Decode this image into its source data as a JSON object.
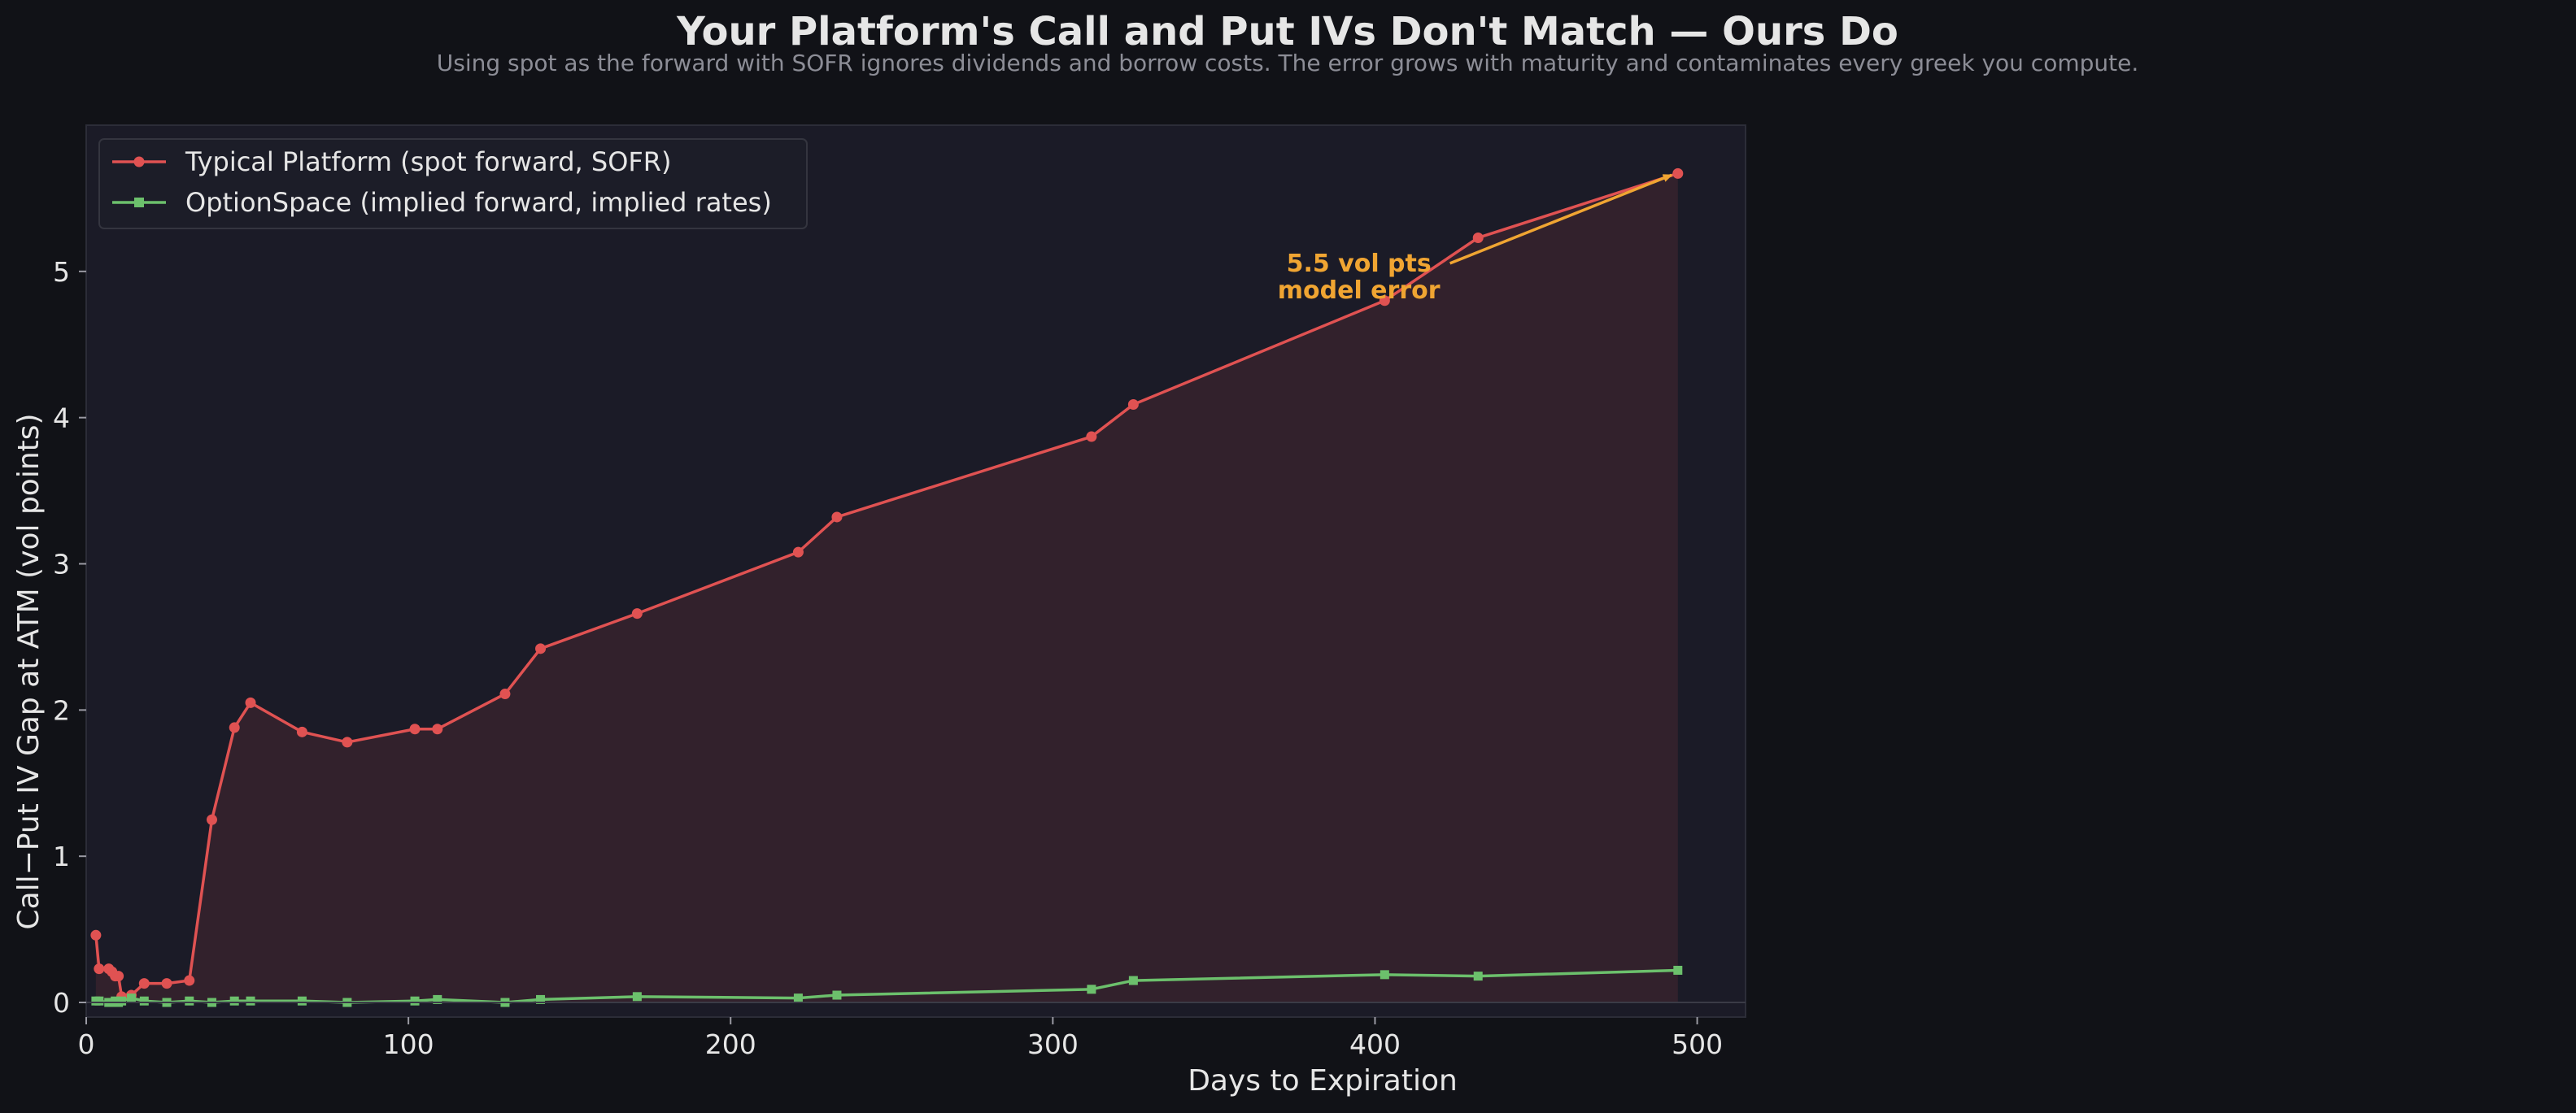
{
  "title": "Your Platform's Call and Put IVs Don't Match — Ours Do",
  "subtitle": "Using spot as the forward with SOFR ignores dividends and borrow costs. The error grows with maturity and contaminates every greek you compute.",
  "colors": {
    "background": "#111217",
    "plot_background": "#1b1b27",
    "typical": "#e05252",
    "optionspace": "#6cc06c",
    "annotation": "#f0a532"
  },
  "chart_data": {
    "type": "line",
    "xlabel": "Days to Expiration",
    "ylabel": "Call−Put IV Gap at ATM (vol points)",
    "xlim": [
      0,
      515
    ],
    "ylim": [
      -0.1,
      6.0
    ],
    "xticks": [
      0,
      100,
      200,
      300,
      400,
      500
    ],
    "yticks": [
      0,
      1,
      2,
      3,
      4,
      5
    ],
    "grid": false,
    "legend_position": "top-left",
    "series": [
      {
        "name": "Typical Platform (spot forward, SOFR)",
        "marker": "circle",
        "fill_below": true,
        "x": [
          3,
          4,
          7,
          8,
          9,
          10,
          11,
          14,
          18,
          25,
          32,
          39,
          46,
          51,
          67,
          81,
          102,
          109,
          130,
          141,
          171,
          221,
          233,
          312,
          325,
          403,
          432,
          494
        ],
        "y": [
          0.46,
          0.23,
          0.23,
          0.21,
          0.18,
          0.18,
          0.04,
          0.05,
          0.13,
          0.13,
          0.15,
          1.25,
          1.88,
          2.05,
          1.85,
          1.78,
          1.87,
          1.87,
          2.11,
          2.42,
          2.66,
          3.08,
          3.32,
          3.87,
          4.09,
          4.8,
          5.23,
          5.67
        ]
      },
      {
        "name": "OptionSpace (implied forward, implied rates)",
        "marker": "square",
        "fill_below": false,
        "x": [
          3,
          4,
          7,
          8,
          9,
          10,
          11,
          14,
          18,
          25,
          32,
          39,
          46,
          51,
          67,
          81,
          102,
          109,
          130,
          141,
          171,
          221,
          233,
          312,
          325,
          403,
          432,
          494
        ],
        "y": [
          0.01,
          0.01,
          0.0,
          0.0,
          0.01,
          0.0,
          0.01,
          0.03,
          0.01,
          0.0,
          0.01,
          0.0,
          0.01,
          0.01,
          0.01,
          0.0,
          0.01,
          0.02,
          0.0,
          0.02,
          0.04,
          0.03,
          0.05,
          0.09,
          0.15,
          0.19,
          0.18,
          0.22
        ]
      }
    ],
    "annotation": {
      "lines": [
        "5.5 vol pts",
        "model error"
      ],
      "arrow_to": {
        "x": 494,
        "y": 5.67
      },
      "text_at": {
        "x": 395,
        "y": 5.0
      }
    }
  }
}
